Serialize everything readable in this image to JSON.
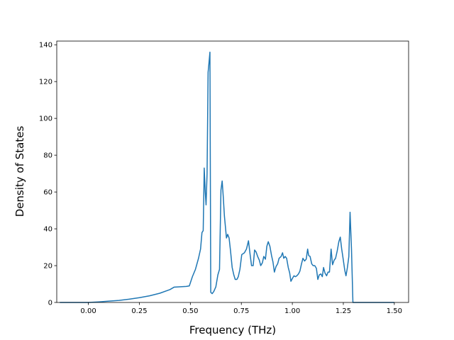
{
  "chart_data": {
    "type": "line",
    "title": "",
    "xlabel": "Frequency (THz)",
    "ylabel": "Density of States",
    "xlim": [
      -0.155,
      1.57
    ],
    "ylim": [
      0,
      142
    ],
    "grid": false,
    "xticks": [
      0.0,
      0.25,
      0.5,
      0.75,
      1.0,
      1.25,
      1.5
    ],
    "xtick_labels": [
      "0.00",
      "0.25",
      "0.50",
      "0.75",
      "1.00",
      "1.25",
      "1.50"
    ],
    "yticks": [
      0,
      20,
      40,
      60,
      80,
      100,
      120,
      140
    ],
    "ytick_labels": [
      "0",
      "20",
      "40",
      "60",
      "80",
      "100",
      "120",
      "140"
    ],
    "series": [
      {
        "color": "#1f77b4",
        "points": [
          [
            -0.14,
            0.0
          ],
          [
            0.0,
            0.0
          ],
          [
            0.05,
            0.3
          ],
          [
            0.1,
            0.7
          ],
          [
            0.15,
            1.1
          ],
          [
            0.2,
            1.8
          ],
          [
            0.25,
            2.6
          ],
          [
            0.3,
            3.6
          ],
          [
            0.35,
            5.0
          ],
          [
            0.4,
            7.0
          ],
          [
            0.42,
            8.3
          ],
          [
            0.45,
            8.5
          ],
          [
            0.48,
            8.7
          ],
          [
            0.495,
            9.0
          ],
          [
            0.51,
            14.0
          ],
          [
            0.525,
            18.0
          ],
          [
            0.54,
            24.0
          ],
          [
            0.55,
            29.0
          ],
          [
            0.557,
            38.0
          ],
          [
            0.563,
            39.0
          ],
          [
            0.568,
            73.0
          ],
          [
            0.573,
            60.0
          ],
          [
            0.577,
            53.0
          ],
          [
            0.582,
            70.0
          ],
          [
            0.587,
            125.0
          ],
          [
            0.592,
            131.0
          ],
          [
            0.596,
            136.0
          ],
          [
            0.6,
            5.5
          ],
          [
            0.607,
            4.8
          ],
          [
            0.615,
            6.0
          ],
          [
            0.625,
            8.5
          ],
          [
            0.635,
            15.0
          ],
          [
            0.643,
            18.0
          ],
          [
            0.65,
            61.0
          ],
          [
            0.656,
            66.0
          ],
          [
            0.661,
            58.0
          ],
          [
            0.667,
            47.0
          ],
          [
            0.672,
            41.0
          ],
          [
            0.677,
            35.0
          ],
          [
            0.683,
            37.0
          ],
          [
            0.69,
            35.0
          ],
          [
            0.697,
            28.0
          ],
          [
            0.705,
            19.0
          ],
          [
            0.713,
            15.0
          ],
          [
            0.72,
            12.5
          ],
          [
            0.728,
            12.5
          ],
          [
            0.735,
            14.0
          ],
          [
            0.743,
            18.0
          ],
          [
            0.752,
            26.0
          ],
          [
            0.765,
            27.0
          ],
          [
            0.775,
            29.0
          ],
          [
            0.785,
            33.5
          ],
          [
            0.793,
            26.0
          ],
          [
            0.8,
            20.0
          ],
          [
            0.808,
            20.0
          ],
          [
            0.815,
            28.5
          ],
          [
            0.822,
            27.5
          ],
          [
            0.83,
            25.0
          ],
          [
            0.838,
            23.0
          ],
          [
            0.845,
            20.0
          ],
          [
            0.853,
            21.5
          ],
          [
            0.86,
            25.0
          ],
          [
            0.868,
            23.5
          ],
          [
            0.875,
            30.5
          ],
          [
            0.882,
            33.0
          ],
          [
            0.89,
            30.5
          ],
          [
            0.898,
            25.5
          ],
          [
            0.905,
            22.0
          ],
          [
            0.912,
            16.5
          ],
          [
            0.92,
            19.5
          ],
          [
            0.928,
            21.0
          ],
          [
            0.935,
            24.0
          ],
          [
            0.945,
            25.0
          ],
          [
            0.952,
            27.0
          ],
          [
            0.958,
            24.0
          ],
          [
            0.965,
            25.0
          ],
          [
            0.972,
            24.0
          ],
          [
            0.98,
            19.0
          ],
          [
            0.987,
            16.0
          ],
          [
            0.993,
            11.5
          ],
          [
            1.0,
            13.0
          ],
          [
            1.008,
            14.5
          ],
          [
            1.015,
            14.0
          ],
          [
            1.022,
            14.5
          ],
          [
            1.03,
            15.5
          ],
          [
            1.037,
            17.0
          ],
          [
            1.045,
            21.0
          ],
          [
            1.052,
            24.0
          ],
          [
            1.06,
            22.5
          ],
          [
            1.068,
            23.5
          ],
          [
            1.075,
            29.0
          ],
          [
            1.08,
            25.5
          ],
          [
            1.087,
            25.0
          ],
          [
            1.095,
            21.0
          ],
          [
            1.102,
            20.0
          ],
          [
            1.11,
            20.0
          ],
          [
            1.118,
            18.5
          ],
          [
            1.125,
            12.5
          ],
          [
            1.132,
            15.0
          ],
          [
            1.14,
            15.5
          ],
          [
            1.147,
            14.0
          ],
          [
            1.153,
            19.0
          ],
          [
            1.16,
            16.0
          ],
          [
            1.168,
            14.5
          ],
          [
            1.175,
            16.5
          ],
          [
            1.182,
            16.5
          ],
          [
            1.19,
            29.0
          ],
          [
            1.197,
            20.5
          ],
          [
            1.205,
            23.0
          ],
          [
            1.212,
            24.0
          ],
          [
            1.22,
            28.0
          ],
          [
            1.228,
            33.0
          ],
          [
            1.235,
            35.5
          ],
          [
            1.242,
            29.0
          ],
          [
            1.25,
            23.0
          ],
          [
            1.257,
            17.5
          ],
          [
            1.263,
            14.5
          ],
          [
            1.27,
            19.0
          ],
          [
            1.277,
            25.0
          ],
          [
            1.283,
            49.0
          ],
          [
            1.29,
            29.0
          ],
          [
            1.297,
            0.0
          ],
          [
            1.35,
            0.0
          ],
          [
            1.37,
            0.0
          ],
          [
            1.5,
            0.0
          ]
        ]
      }
    ]
  }
}
